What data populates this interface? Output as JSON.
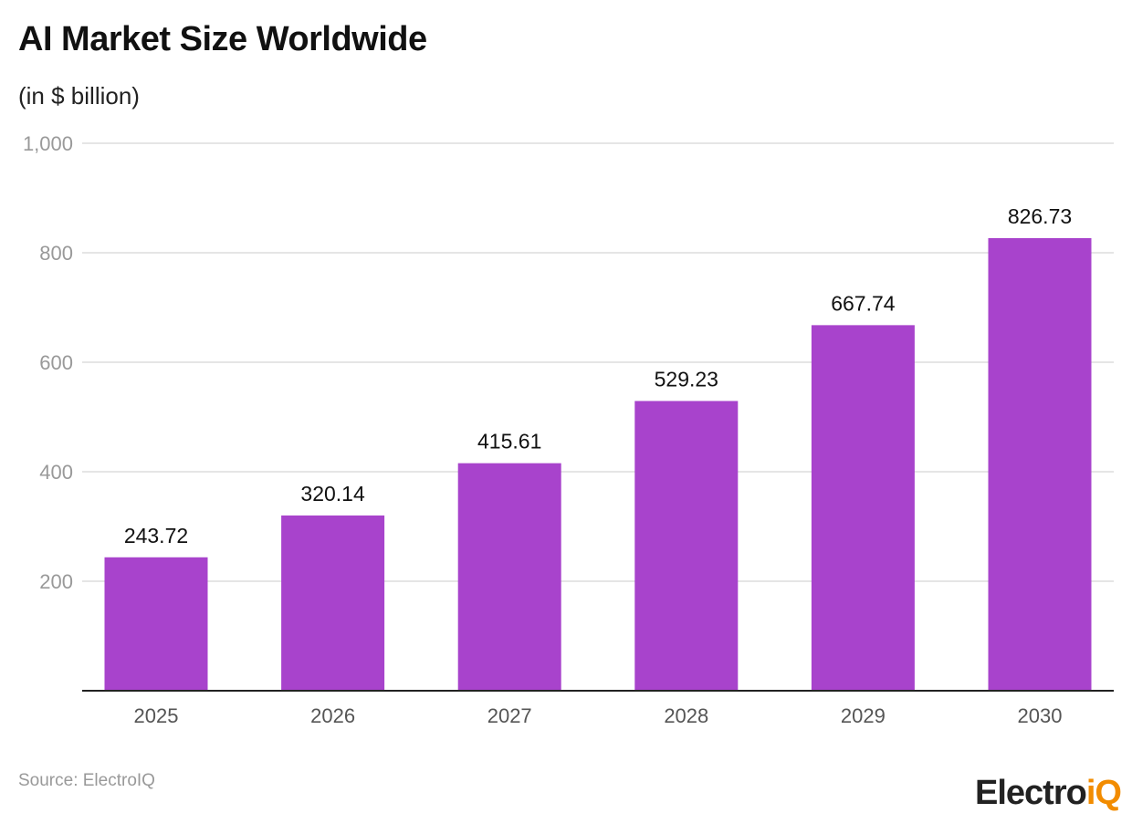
{
  "title": "AI Market Size Worldwide",
  "subtitle": "(in $ billion)",
  "source": "Source: ElectroIQ",
  "logo": {
    "text_main": "Electro",
    "text_accent": "iQ"
  },
  "colors": {
    "bar": "#a843cc",
    "grid": "#e5e5e5",
    "axis": "#222222",
    "tick": "#999999",
    "logo_accent": "#f28c00"
  },
  "chart_data": {
    "type": "bar",
    "title": "AI Market Size Worldwide",
    "subtitle": "(in $ billion)",
    "categories": [
      "2025",
      "2026",
      "2027",
      "2028",
      "2029",
      "2030"
    ],
    "values": [
      243.72,
      320.14,
      415.61,
      529.23,
      667.74,
      826.73
    ],
    "labels": [
      "243.72",
      "320.14",
      "415.61",
      "529.23",
      "667.74",
      "826.73"
    ],
    "yticks": [
      200,
      400,
      600,
      800,
      1000
    ],
    "ytick_labels": [
      "200",
      "400",
      "600",
      "800",
      "1,000"
    ],
    "ylim": [
      0,
      1000
    ],
    "grid": true,
    "legend": "none"
  }
}
